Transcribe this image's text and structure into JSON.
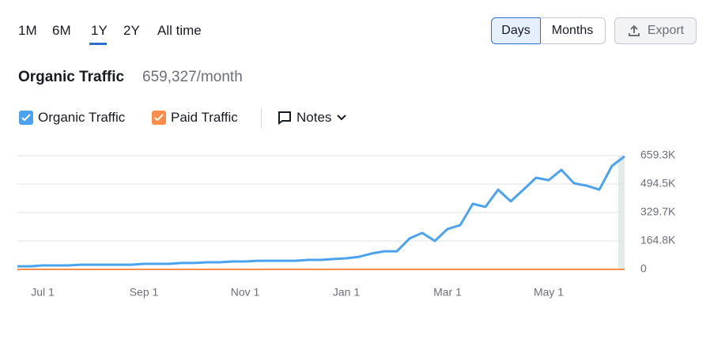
{
  "range_tabs": [
    "1M",
    "6M",
    "1Y",
    "2Y",
    "All time"
  ],
  "granularity": [
    "Days",
    "Months"
  ],
  "export": "Export",
  "notes": "Notes",
  "header": {
    "title": "Organic Traffic",
    "value": "659,327/month"
  },
  "chart_data": {
    "type": "line",
    "categories": [
      null,
      null,
      "Jul 1",
      null,
      null,
      null,
      null,
      null,
      null,
      null,
      "Sep 1",
      null,
      null,
      null,
      null,
      null,
      null,
      null,
      "Nov 1",
      null,
      null,
      null,
      null,
      null,
      null,
      null,
      "Jan 1",
      null,
      null,
      null,
      null,
      null,
      null,
      null,
      "Mar 1",
      null,
      null,
      null,
      null,
      null,
      null,
      null,
      "May 1",
      null,
      null,
      null,
      null,
      null,
      null
    ],
    "series": [
      {
        "name": "Organic Traffic",
        "color": "#4ba3ef",
        "values": [
          18000,
          18000,
          23000,
          23000,
          23000,
          27000,
          27000,
          27000,
          27000,
          27000,
          32000,
          32000,
          32000,
          37000,
          37000,
          41000,
          41000,
          46000,
          46000,
          50000,
          50000,
          50000,
          50000,
          55000,
          55000,
          60000,
          64000,
          73000,
          92000,
          105000,
          105000,
          179000,
          211000,
          165000,
          234000,
          256000,
          380000,
          362000,
          462000,
          394000,
          462000,
          531000,
          517000,
          577000,
          499000,
          485000,
          462000,
          600000,
          655000
        ]
      },
      {
        "name": "Paid Traffic",
        "color": "#fd8c49",
        "values": [
          0,
          0,
          0,
          0,
          0,
          0,
          0,
          0,
          0,
          0,
          0,
          0,
          0,
          0,
          0,
          0,
          0,
          0,
          0,
          0,
          0,
          0,
          0,
          0,
          0,
          0,
          0,
          0,
          0,
          0,
          0,
          0,
          0,
          0,
          0,
          0,
          0,
          0,
          0,
          0,
          0,
          0,
          0,
          0,
          0,
          0,
          0,
          0,
          0
        ]
      }
    ],
    "ylim": [
      0,
      659327
    ],
    "yticks": [
      0,
      {
        "value": 164832,
        "label": "164.8K"
      },
      {
        "value": 329664,
        "label": "329.7K"
      },
      {
        "value": 494495,
        "label": "494.5K"
      },
      {
        "value": 659327,
        "label": "659.3K"
      }
    ],
    "grid": true
  }
}
